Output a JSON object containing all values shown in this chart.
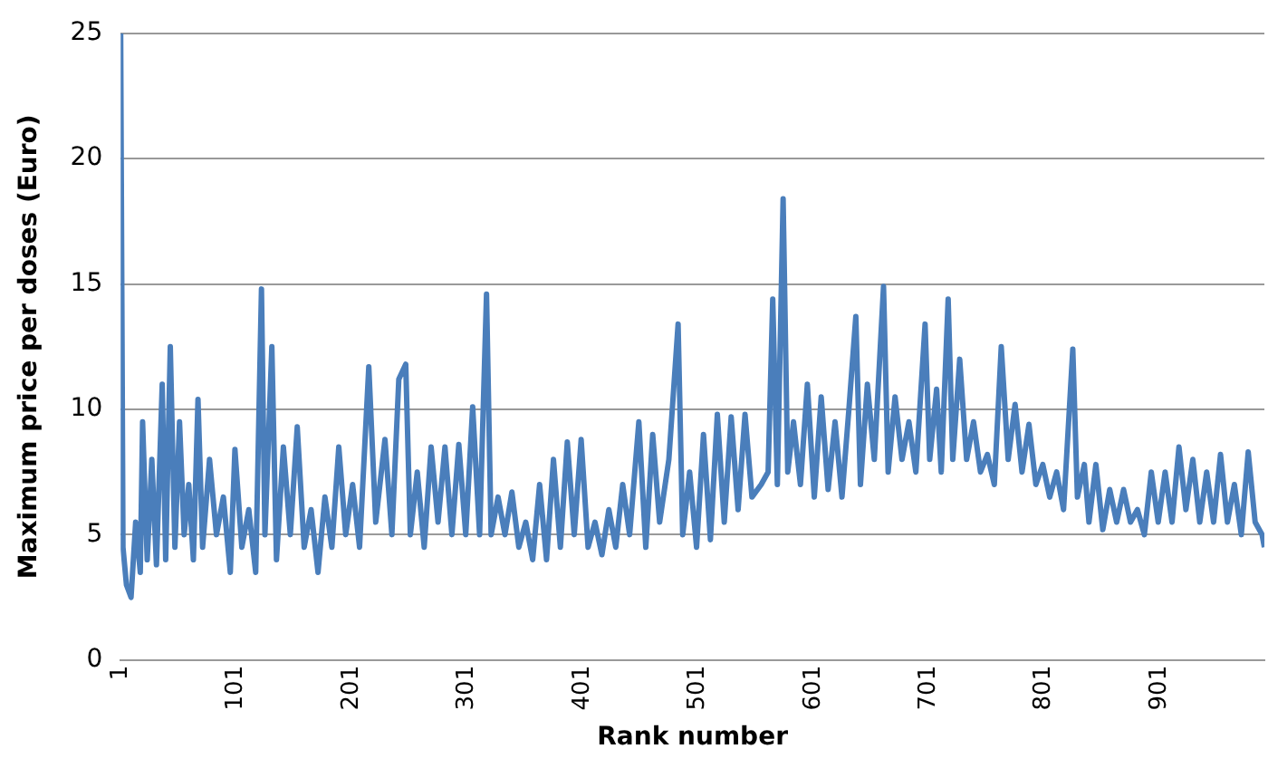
{
  "chart_data": {
    "type": "line",
    "xlabel": "Rank number",
    "ylabel": "Maximum price per doses (Euro)",
    "x": [
      1,
      3,
      6,
      10,
      14,
      18,
      20,
      24,
      28,
      32,
      37,
      40,
      44,
      48,
      52,
      56,
      60,
      64,
      68,
      72,
      78,
      84,
      90,
      96,
      100,
      106,
      112,
      118,
      123,
      126,
      132,
      136,
      142,
      148,
      154,
      160,
      166,
      172,
      178,
      184,
      190,
      196,
      202,
      208,
      216,
      222,
      230,
      236,
      242,
      248,
      252,
      258,
      264,
      270,
      276,
      282,
      288,
      294,
      300,
      306,
      312,
      318,
      322,
      328,
      334,
      340,
      346,
      352,
      358,
      364,
      370,
      376,
      382,
      388,
      394,
      400,
      406,
      412,
      418,
      424,
      430,
      436,
      442,
      450,
      456,
      462,
      468,
      476,
      484,
      488,
      494,
      500,
      506,
      512,
      518,
      524,
      530,
      536,
      542,
      548,
      556,
      562,
      566,
      570,
      575,
      579,
      584,
      590,
      596,
      602,
      608,
      614,
      620,
      626,
      632,
      638,
      642,
      648,
      654,
      662,
      666,
      672,
      678,
      684,
      690,
      698,
      702,
      708,
      712,
      718,
      722,
      728,
      734,
      740,
      746,
      752,
      758,
      764,
      770,
      776,
      782,
      788,
      794,
      800,
      806,
      812,
      818,
      826,
      830,
      836,
      840,
      846,
      852,
      858,
      864,
      870,
      876,
      882,
      888,
      894,
      900,
      906,
      912,
      918,
      924,
      930,
      936,
      942,
      948,
      954,
      960,
      966,
      972,
      978,
      984,
      990,
      992
    ],
    "series": [
      {
        "color": "#4a7ebb",
        "values": [
          25,
          4.5,
          3,
          2.5,
          5.5,
          3.5,
          9.5,
          4,
          8,
          3.8,
          11,
          4,
          12.5,
          4.5,
          9.5,
          5,
          7,
          4,
          10.4,
          4.5,
          8,
          5,
          6.5,
          3.5,
          8.4,
          4.5,
          6,
          3.5,
          14.8,
          5,
          12.5,
          4,
          8.5,
          5,
          9.3,
          4.5,
          6,
          3.5,
          6.5,
          4.5,
          8.5,
          5,
          7,
          4.5,
          11.7,
          5.5,
          8.8,
          5,
          11.2,
          11.8,
          5,
          7.5,
          4.5,
          8.5,
          5.5,
          8.5,
          5,
          8.6,
          5,
          10.1,
          5,
          14.6,
          5,
          6.5,
          5,
          6.7,
          4.5,
          5.5,
          4,
          7,
          4,
          8,
          4.5,
          8.7,
          5,
          8.8,
          4.5,
          5.5,
          4.2,
          6,
          4.5,
          7,
          5,
          9.5,
          4.5,
          9,
          5.5,
          8,
          13.4,
          5,
          7.5,
          4.5,
          9,
          4.8,
          9.8,
          5.5,
          9.7,
          6,
          9.8,
          6.5,
          7,
          7.5,
          14.4,
          7,
          18.4,
          7.5,
          9.5,
          7,
          11,
          6.5,
          10.5,
          6.8,
          9.5,
          6.5,
          10,
          13.7,
          7,
          11,
          8,
          14.9,
          7.5,
          10.5,
          8,
          9.5,
          7.5,
          13.4,
          8,
          10.8,
          7.5,
          14.4,
          8,
          12,
          8,
          9.5,
          7.5,
          8.2,
          7,
          12.5,
          8,
          10.2,
          7.5,
          9.4,
          7,
          7.8,
          6.5,
          7.5,
          6,
          12.4,
          6.5,
          7.8,
          5.5,
          7.8,
          5.2,
          6.8,
          5.5,
          6.8,
          5.5,
          6,
          5,
          7.5,
          5.5,
          7.5,
          5.5,
          8.5,
          6,
          8,
          5.5,
          7.5,
          5.5,
          8.2,
          5.5,
          7,
          5,
          8.3,
          5.5,
          5,
          4.5
        ]
      }
    ],
    "xlim": [
      1,
      992
    ],
    "xticks": [
      1,
      101,
      201,
      301,
      401,
      501,
      601,
      701,
      801,
      901
    ],
    "ylim": [
      0,
      25
    ],
    "yticks": [
      0,
      5,
      10,
      15,
      20,
      25
    ],
    "grid": "y",
    "legend": false,
    "marker": "none",
    "line_style": "solid"
  }
}
